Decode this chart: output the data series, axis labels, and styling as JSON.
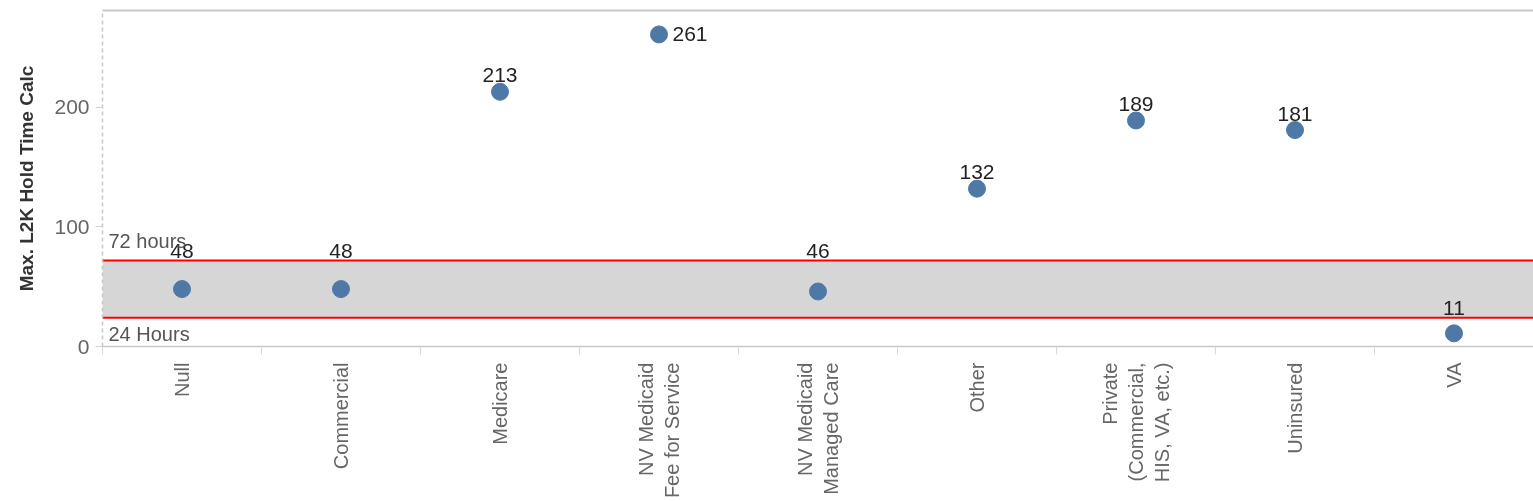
{
  "chart_data": {
    "type": "scatter",
    "ylabel": "Max. L2K Hold Time Calc",
    "categories": [
      "Null",
      "Commercial",
      "Medicare",
      "NV Medicaid\nFee for Service",
      "NV Medicaid\nManaged Care",
      "Other",
      "Private\n(Commercial,\nHIS, VA, etc.)",
      "Uninsured",
      "VA"
    ],
    "values": [
      48,
      48,
      213,
      261,
      46,
      132,
      189,
      181,
      11
    ],
    "color": "#4e79a7",
    "marker": "circle",
    "data_labels": true,
    "ylim": [
      0,
      281
    ],
    "yticks": [
      0,
      100,
      200
    ],
    "grid": false,
    "bands": [
      {
        "axis": "y",
        "from": 24,
        "to": 72,
        "color": "#d6d6d6"
      }
    ],
    "ref_lines": [
      {
        "axis": "y",
        "value": 72,
        "label": "72 hours",
        "color": "#ff0000"
      },
      {
        "axis": "y",
        "value": 24,
        "label": "24 Hours",
        "color": "#ff0000"
      }
    ]
  }
}
